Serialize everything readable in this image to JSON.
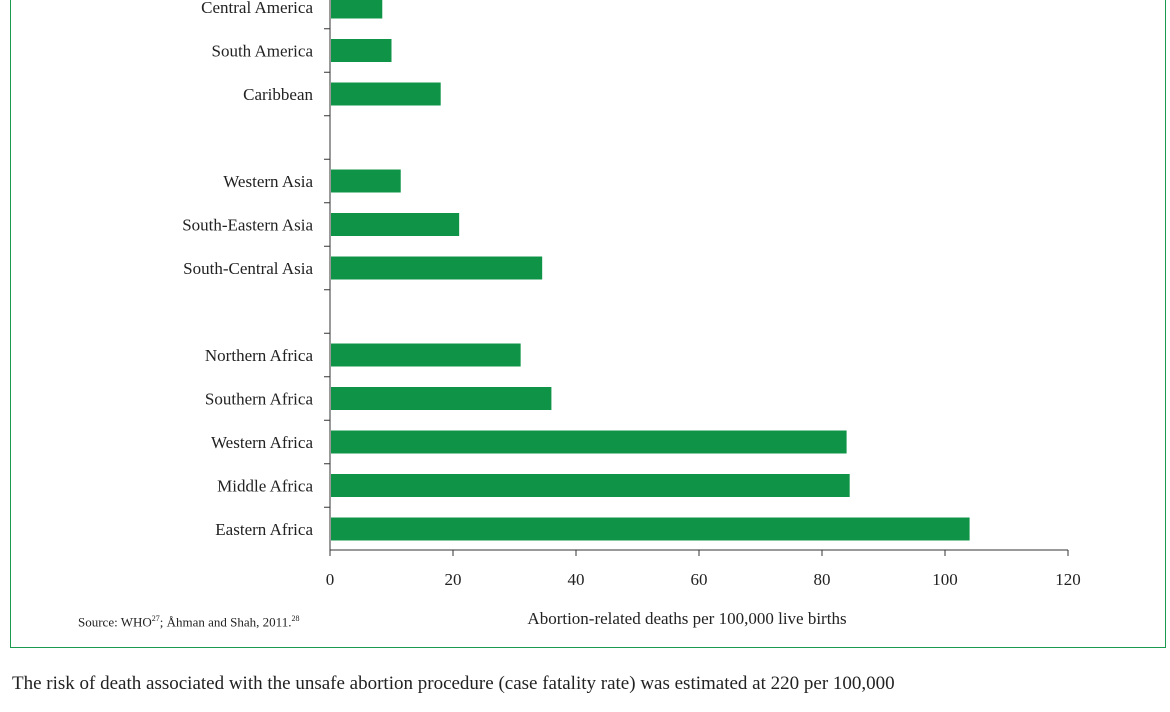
{
  "figure": {
    "source": {
      "prefix": "Source: WHO",
      "ref1": "27",
      "middle": "; Åhman and Shah, 2011.",
      "ref2": "28"
    }
  },
  "body_text": "The risk of death associated with the unsafe abortion procedure (case fatality rate) was estimated at 220 per 100,000",
  "colors": {
    "bar": "#0f9447",
    "frame": "#1a9a4e",
    "axis": "#333333"
  },
  "chart_data": {
    "type": "bar",
    "orientation": "horizontal",
    "categories": [
      "Central America",
      "South America",
      "Caribbean",
      "",
      "Western Asia",
      "South-Eastern Asia",
      "South-Central Asia",
      "",
      "Northern Africa",
      "Southern Africa",
      "Western Africa",
      "Middle Africa",
      "Eastern Africa"
    ],
    "values": [
      8.5,
      10,
      18,
      null,
      11.5,
      21,
      34.5,
      null,
      31,
      36,
      84,
      84.5,
      104
    ],
    "xlabel": "Abortion-related deaths per 100,000 live births",
    "xlim": [
      0,
      120
    ],
    "xticks": [
      0,
      20,
      40,
      60,
      80,
      100,
      120
    ],
    "grid": false,
    "legend": "none"
  }
}
